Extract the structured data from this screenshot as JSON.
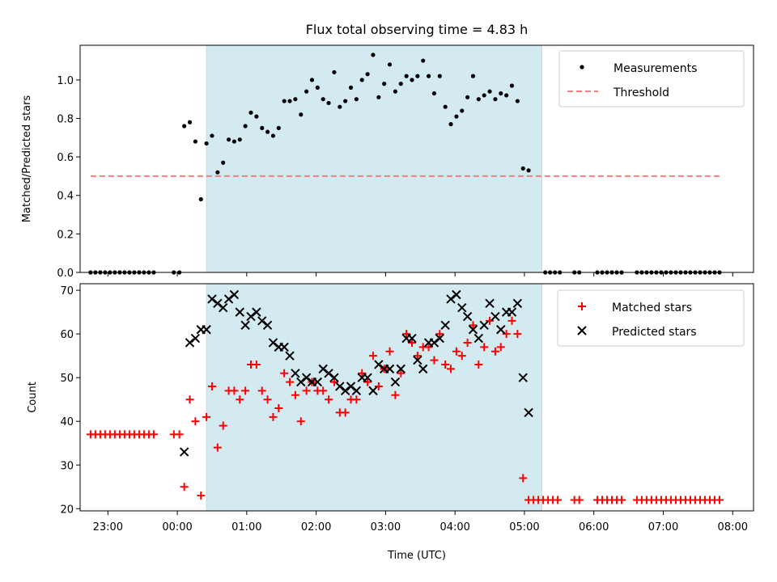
{
  "chart_data": [
    {
      "type": "scatter",
      "title": "Flux total observing time = 4.83 h",
      "xlabel": "",
      "ylabel": "Matched/Predicted stars",
      "xlim_hours": [
        -1.4,
        8.3
      ],
      "ylim": [
        0,
        1.18
      ],
      "yticks": [
        0.0,
        0.2,
        0.4,
        0.6,
        0.8,
        1.0
      ],
      "yticklabels": [
        "0.0",
        "0.2",
        "0.4",
        "0.6",
        "0.8",
        "1.0"
      ],
      "observing_window_hours": [
        0.42,
        5.25
      ],
      "window_color": "#d4eaf1",
      "legend_position": "top-right",
      "legend": [
        {
          "label": "Measurements",
          "marker": "dot",
          "color": "#000000"
        },
        {
          "label": "Threshold",
          "marker": "dashed-line",
          "color": "#f08080"
        }
      ],
      "threshold": {
        "value": 0.5,
        "x_range_hours": [
          -1.25,
          7.85
        ],
        "color": "#f08080"
      },
      "measurements": [
        [
          -1.25,
          0
        ],
        [
          -1.18,
          0
        ],
        [
          -1.11,
          0
        ],
        [
          -1.04,
          0
        ],
        [
          -0.97,
          0
        ],
        [
          -0.9,
          0
        ],
        [
          -0.83,
          0
        ],
        [
          -0.76,
          0
        ],
        [
          -0.69,
          0
        ],
        [
          -0.62,
          0
        ],
        [
          -0.55,
          0
        ],
        [
          -0.48,
          0
        ],
        [
          -0.41,
          0
        ],
        [
          -0.34,
          0
        ],
        [
          -0.05,
          0
        ],
        [
          0.03,
          0
        ],
        [
          0.1,
          0.76
        ],
        [
          0.18,
          0.78
        ],
        [
          0.26,
          0.68
        ],
        [
          0.34,
          0.38
        ],
        [
          0.42,
          0.67
        ],
        [
          0.5,
          0.71
        ],
        [
          0.58,
          0.52
        ],
        [
          0.66,
          0.57
        ],
        [
          0.74,
          0.69
        ],
        [
          0.82,
          0.68
        ],
        [
          0.9,
          0.69
        ],
        [
          0.98,
          0.76
        ],
        [
          1.06,
          0.83
        ],
        [
          1.14,
          0.81
        ],
        [
          1.22,
          0.75
        ],
        [
          1.3,
          0.73
        ],
        [
          1.38,
          0.71
        ],
        [
          1.46,
          0.75
        ],
        [
          1.54,
          0.89
        ],
        [
          1.62,
          0.89
        ],
        [
          1.7,
          0.9
        ],
        [
          1.78,
          0.82
        ],
        [
          1.86,
          0.94
        ],
        [
          1.94,
          1.0
        ],
        [
          2.02,
          0.96
        ],
        [
          2.1,
          0.9
        ],
        [
          2.18,
          0.88
        ],
        [
          2.26,
          1.04
        ],
        [
          2.34,
          0.86
        ],
        [
          2.42,
          0.89
        ],
        [
          2.5,
          0.96
        ],
        [
          2.58,
          0.9
        ],
        [
          2.66,
          1.0
        ],
        [
          2.74,
          1.03
        ],
        [
          2.82,
          1.13
        ],
        [
          2.9,
          0.91
        ],
        [
          2.98,
          0.98
        ],
        [
          3.06,
          1.08
        ],
        [
          3.14,
          0.94
        ],
        [
          3.22,
          0.98
        ],
        [
          3.3,
          1.02
        ],
        [
          3.38,
          1.0
        ],
        [
          3.46,
          1.02
        ],
        [
          3.54,
          1.1
        ],
        [
          3.62,
          1.02
        ],
        [
          3.7,
          0.93
        ],
        [
          3.78,
          1.02
        ],
        [
          3.86,
          0.86
        ],
        [
          3.94,
          0.77
        ],
        [
          4.02,
          0.81
        ],
        [
          4.1,
          0.84
        ],
        [
          4.18,
          0.91
        ],
        [
          4.26,
          1.02
        ],
        [
          4.34,
          0.9
        ],
        [
          4.42,
          0.92
        ],
        [
          4.5,
          0.94
        ],
        [
          4.58,
          0.9
        ],
        [
          4.66,
          0.93
        ],
        [
          4.74,
          0.92
        ],
        [
          4.82,
          0.97
        ],
        [
          4.9,
          0.89
        ],
        [
          4.98,
          0.54
        ],
        [
          5.06,
          0.53
        ],
        [
          5.3,
          0
        ],
        [
          5.37,
          0
        ],
        [
          5.44,
          0
        ],
        [
          5.51,
          0
        ],
        [
          5.72,
          0
        ],
        [
          5.79,
          0
        ],
        [
          6.05,
          0
        ],
        [
          6.12,
          0
        ],
        [
          6.19,
          0
        ],
        [
          6.26,
          0
        ],
        [
          6.33,
          0
        ],
        [
          6.4,
          0
        ],
        [
          6.62,
          0
        ],
        [
          6.69,
          0
        ],
        [
          6.76,
          0
        ],
        [
          6.83,
          0
        ],
        [
          6.9,
          0
        ],
        [
          6.97,
          0
        ],
        [
          7.04,
          0
        ],
        [
          7.11,
          0
        ],
        [
          7.18,
          0
        ],
        [
          7.25,
          0
        ],
        [
          7.32,
          0
        ],
        [
          7.39,
          0
        ],
        [
          7.46,
          0
        ],
        [
          7.53,
          0
        ],
        [
          7.6,
          0
        ],
        [
          7.67,
          0
        ],
        [
          7.74,
          0
        ],
        [
          7.81,
          0
        ]
      ]
    },
    {
      "type": "scatter",
      "title": "",
      "xlabel": "Time (UTC)",
      "ylabel": "Count",
      "xlim_hours": [
        -1.4,
        8.3
      ],
      "ylim": [
        19.5,
        71.5
      ],
      "yticks": [
        20,
        30,
        40,
        50,
        60,
        70
      ],
      "yticklabels": [
        "20",
        "30",
        "40",
        "50",
        "60",
        "70"
      ],
      "xticks_hours": [
        -1,
        0,
        1,
        2,
        3,
        4,
        5,
        6,
        7,
        8
      ],
      "xticklabels": [
        "23:00",
        "00:00",
        "01:00",
        "02:00",
        "03:00",
        "04:00",
        "05:00",
        "06:00",
        "07:00",
        "08:00"
      ],
      "observing_window_hours": [
        0.42,
        5.25
      ],
      "window_color": "#d4eaf1",
      "legend_position": "top-right",
      "legend": [
        {
          "label": "Matched stars",
          "marker": "plus",
          "color": "#ff0000"
        },
        {
          "label": "Predicted stars",
          "marker": "x",
          "color": "#000000"
        }
      ],
      "series": [
        {
          "name": "Matched stars",
          "marker": "plus",
          "color": "#ff0000",
          "points": [
            [
              -1.25,
              37
            ],
            [
              -1.18,
              37
            ],
            [
              -1.11,
              37
            ],
            [
              -1.04,
              37
            ],
            [
              -0.97,
              37
            ],
            [
              -0.9,
              37
            ],
            [
              -0.83,
              37
            ],
            [
              -0.76,
              37
            ],
            [
              -0.69,
              37
            ],
            [
              -0.62,
              37
            ],
            [
              -0.55,
              37
            ],
            [
              -0.48,
              37
            ],
            [
              -0.41,
              37
            ],
            [
              -0.34,
              37
            ],
            [
              -0.05,
              37
            ],
            [
              0.03,
              37
            ],
            [
              0.1,
              25
            ],
            [
              0.18,
              45
            ],
            [
              0.26,
              40
            ],
            [
              0.34,
              23
            ],
            [
              0.42,
              41
            ],
            [
              0.5,
              48
            ],
            [
              0.58,
              34
            ],
            [
              0.66,
              39
            ],
            [
              0.74,
              47
            ],
            [
              0.82,
              47
            ],
            [
              0.9,
              45
            ],
            [
              0.98,
              47
            ],
            [
              1.06,
              53
            ],
            [
              1.14,
              53
            ],
            [
              1.22,
              47
            ],
            [
              1.3,
              45
            ],
            [
              1.38,
              41
            ],
            [
              1.46,
              43
            ],
            [
              1.54,
              51
            ],
            [
              1.62,
              49
            ],
            [
              1.7,
              46
            ],
            [
              1.78,
              40
            ],
            [
              1.86,
              47
            ],
            [
              1.94,
              49
            ],
            [
              2.02,
              47
            ],
            [
              2.1,
              47
            ],
            [
              2.18,
              45
            ],
            [
              2.26,
              49
            ],
            [
              2.34,
              42
            ],
            [
              2.42,
              42
            ],
            [
              2.5,
              45
            ],
            [
              2.58,
              45
            ],
            [
              2.66,
              51
            ],
            [
              2.74,
              49
            ],
            [
              2.82,
              55
            ],
            [
              2.9,
              48
            ],
            [
              2.98,
              52
            ],
            [
              3.06,
              56
            ],
            [
              3.14,
              46
            ],
            [
              3.22,
              51
            ],
            [
              3.3,
              60
            ],
            [
              3.38,
              58
            ],
            [
              3.46,
              55
            ],
            [
              3.54,
              57
            ],
            [
              3.62,
              57
            ],
            [
              3.7,
              54
            ],
            [
              3.78,
              60
            ],
            [
              3.86,
              53
            ],
            [
              3.94,
              52
            ],
            [
              4.02,
              56
            ],
            [
              4.1,
              55
            ],
            [
              4.18,
              58
            ],
            [
              4.26,
              62
            ],
            [
              4.34,
              53
            ],
            [
              4.42,
              57
            ],
            [
              4.5,
              63
            ],
            [
              4.58,
              56
            ],
            [
              4.66,
              57
            ],
            [
              4.74,
              60
            ],
            [
              4.82,
              63
            ],
            [
              4.9,
              60
            ],
            [
              4.98,
              27
            ],
            [
              5.06,
              22
            ],
            [
              5.13,
              22
            ],
            [
              5.2,
              22
            ],
            [
              5.27,
              22
            ],
            [
              5.34,
              22
            ],
            [
              5.41,
              22
            ],
            [
              5.48,
              22
            ],
            [
              5.72,
              22
            ],
            [
              5.79,
              22
            ],
            [
              6.05,
              22
            ],
            [
              6.12,
              22
            ],
            [
              6.19,
              22
            ],
            [
              6.26,
              22
            ],
            [
              6.33,
              22
            ],
            [
              6.4,
              22
            ],
            [
              6.62,
              22
            ],
            [
              6.69,
              22
            ],
            [
              6.76,
              22
            ],
            [
              6.83,
              22
            ],
            [
              6.9,
              22
            ],
            [
              6.97,
              22
            ],
            [
              7.04,
              22
            ],
            [
              7.11,
              22
            ],
            [
              7.18,
              22
            ],
            [
              7.25,
              22
            ],
            [
              7.32,
              22
            ],
            [
              7.39,
              22
            ],
            [
              7.46,
              22
            ],
            [
              7.53,
              22
            ],
            [
              7.6,
              22
            ],
            [
              7.67,
              22
            ],
            [
              7.74,
              22
            ],
            [
              7.81,
              22
            ]
          ]
        },
        {
          "name": "Predicted stars",
          "marker": "x",
          "color": "#000000",
          "points": [
            [
              0.1,
              33
            ],
            [
              0.18,
              58
            ],
            [
              0.26,
              59
            ],
            [
              0.34,
              61
            ],
            [
              0.42,
              61
            ],
            [
              0.5,
              68
            ],
            [
              0.58,
              67
            ],
            [
              0.66,
              66
            ],
            [
              0.74,
              68
            ],
            [
              0.82,
              69
            ],
            [
              0.9,
              65
            ],
            [
              0.98,
              62
            ],
            [
              1.06,
              64
            ],
            [
              1.14,
              65
            ],
            [
              1.22,
              63
            ],
            [
              1.3,
              62
            ],
            [
              1.38,
              58
            ],
            [
              1.46,
              57
            ],
            [
              1.54,
              57
            ],
            [
              1.62,
              55
            ],
            [
              1.7,
              51
            ],
            [
              1.78,
              49
            ],
            [
              1.86,
              50
            ],
            [
              1.94,
              49
            ],
            [
              2.02,
              49
            ],
            [
              2.1,
              52
            ],
            [
              2.18,
              51
            ],
            [
              2.26,
              50
            ],
            [
              2.34,
              48
            ],
            [
              2.42,
              47
            ],
            [
              2.5,
              48
            ],
            [
              2.58,
              47
            ],
            [
              2.66,
              50
            ],
            [
              2.74,
              50
            ],
            [
              2.82,
              47
            ],
            [
              2.9,
              53
            ],
            [
              2.98,
              52
            ],
            [
              3.06,
              52
            ],
            [
              3.14,
              49
            ],
            [
              3.22,
              52
            ],
            [
              3.3,
              59
            ],
            [
              3.38,
              59
            ],
            [
              3.46,
              54
            ],
            [
              3.54,
              52
            ],
            [
              3.62,
              58
            ],
            [
              3.7,
              58
            ],
            [
              3.78,
              59
            ],
            [
              3.86,
              62
            ],
            [
              3.94,
              68
            ],
            [
              4.02,
              69
            ],
            [
              4.1,
              66
            ],
            [
              4.18,
              64
            ],
            [
              4.26,
              61
            ],
            [
              4.34,
              59
            ],
            [
              4.42,
              62
            ],
            [
              4.5,
              67
            ],
            [
              4.58,
              64
            ],
            [
              4.66,
              61
            ],
            [
              4.74,
              65
            ],
            [
              4.82,
              65
            ],
            [
              4.9,
              67
            ],
            [
              4.98,
              50
            ],
            [
              5.06,
              42
            ]
          ]
        }
      ]
    }
  ]
}
